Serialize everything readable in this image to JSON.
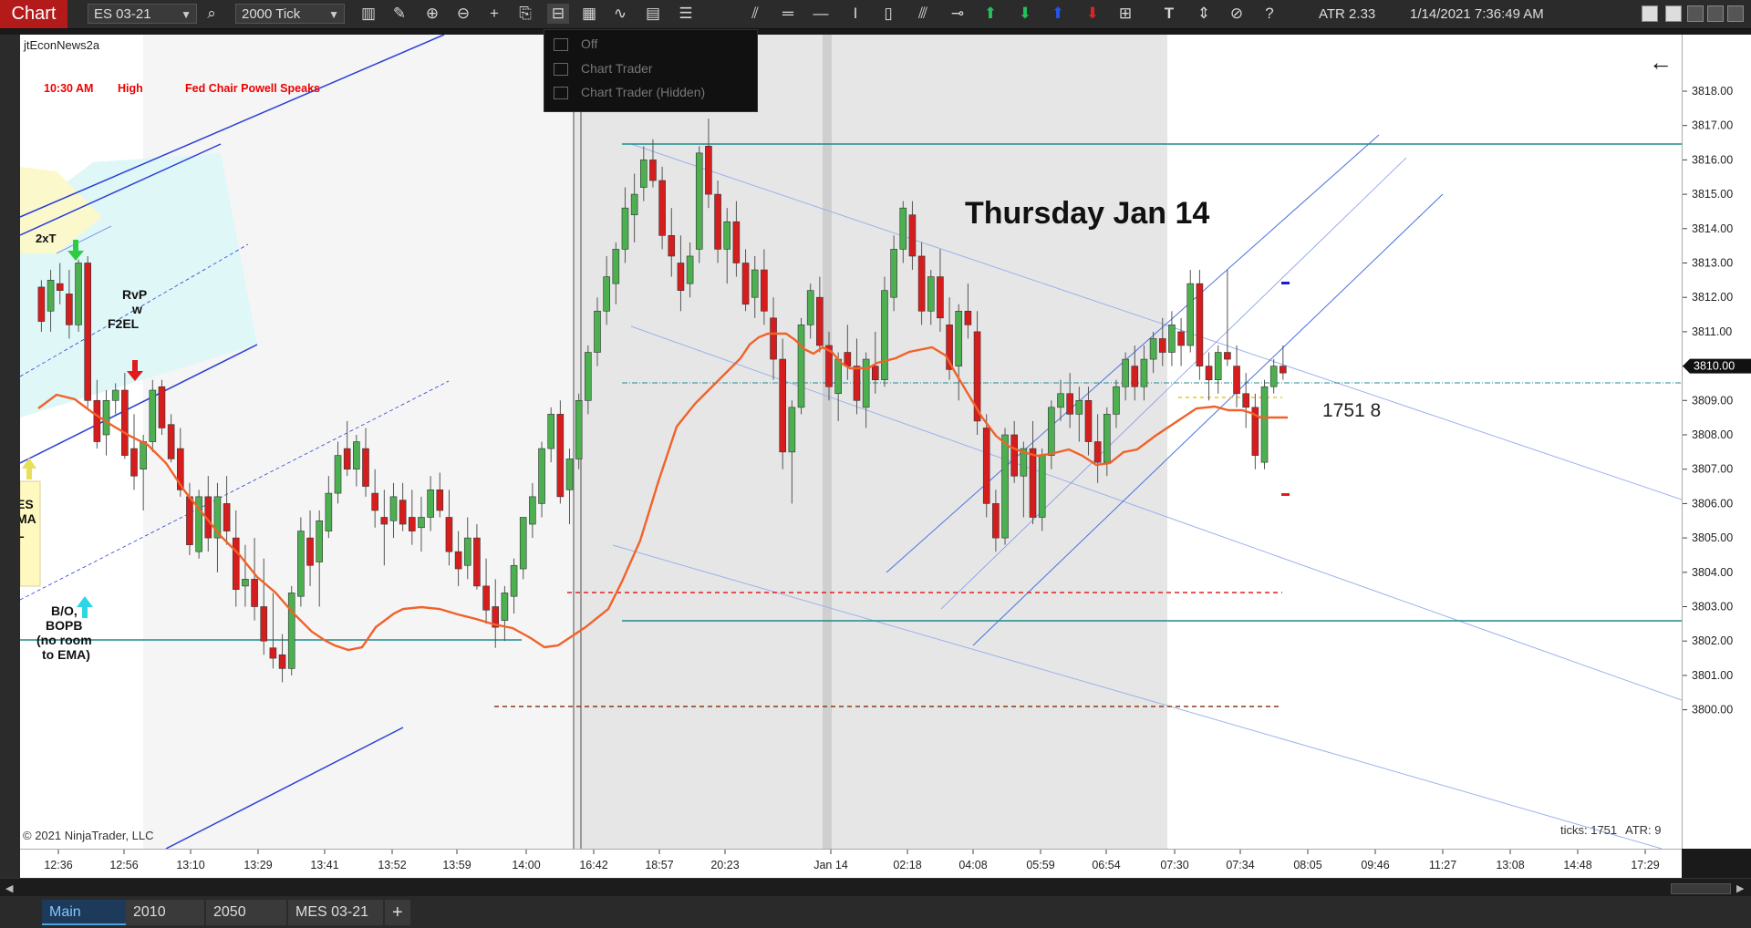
{
  "toolbar": {
    "chart_label": "Chart",
    "instrument": "ES 03-21",
    "interval": "2000 Tick",
    "atr_label": "ATR 2.33",
    "datetime": "1/14/2021 7:36:49 AM",
    "help": "?",
    "text_tool": "T"
  },
  "dropdown": {
    "items": [
      "Off",
      "Chart Trader",
      "Chart Trader (Hidden)"
    ]
  },
  "chart": {
    "indicator_name": "jtEconNews2a",
    "news_time": "10:30 AM",
    "news_impact": "High",
    "news_event": "Fed Chair Powell Speaks",
    "day_title": "Thursday Jan 14",
    "copyright": "© 2021 NinjaTrader, LLC",
    "ticks_info": "ticks: 1751",
    "atr_info": "ATR: 9",
    "tick_counter": "1751  8",
    "current_price": "3810.00",
    "annotations": {
      "two_x_t": "2xT",
      "rvp1": "RvP",
      "rvp2": "w",
      "rvp3": "F2EL",
      "bo1": "B/O,",
      "bo2": "BOPB",
      "bo3": "(no room",
      "bo4": "to EMA)",
      "ema1": "ES",
      "ema2": "MA",
      "ema3": "L"
    }
  },
  "price_axis": [
    "3818.00",
    "3817.00",
    "3816.00",
    "3815.00",
    "3814.00",
    "3813.00",
    "3812.00",
    "3811.00",
    "3810.00",
    "3809.00",
    "3808.00",
    "3807.00",
    "3806.00",
    "3805.00",
    "3804.00",
    "3803.00",
    "3802.00",
    "3801.00",
    "3800.00"
  ],
  "time_axis": [
    "12:36",
    "12:56",
    "13:10",
    "13:29",
    "13:41",
    "13:52",
    "13:59",
    "14:00",
    "16:42",
    "18:57",
    "20:23",
    "Jan 14",
    "02:18",
    "04:08",
    "05:59",
    "06:54",
    "07:30",
    "07:34",
    "08:05",
    "09:46",
    "11:27",
    "13:08",
    "14:48",
    "17:29"
  ],
  "tabs": [
    "Main",
    "2010",
    "2050",
    "MES 03-21"
  ],
  "tab_add": "+",
  "colors": {
    "bull": "#4caf50",
    "bear": "#d61d1d",
    "ema": "#f0622a",
    "teal": "#1f8c8c",
    "channel": "#2a3fd6",
    "chart_red": "#b31b1b"
  },
  "icons": [
    "search-icon",
    "bar-style-icon",
    "pencil-icon",
    "zoom-in-icon",
    "zoom-out-icon",
    "crosshair-icon",
    "data-box-icon",
    "chart-trader-icon",
    "indicators-icon",
    "strategies-icon",
    "templates-icon",
    "properties-icon"
  ]
}
